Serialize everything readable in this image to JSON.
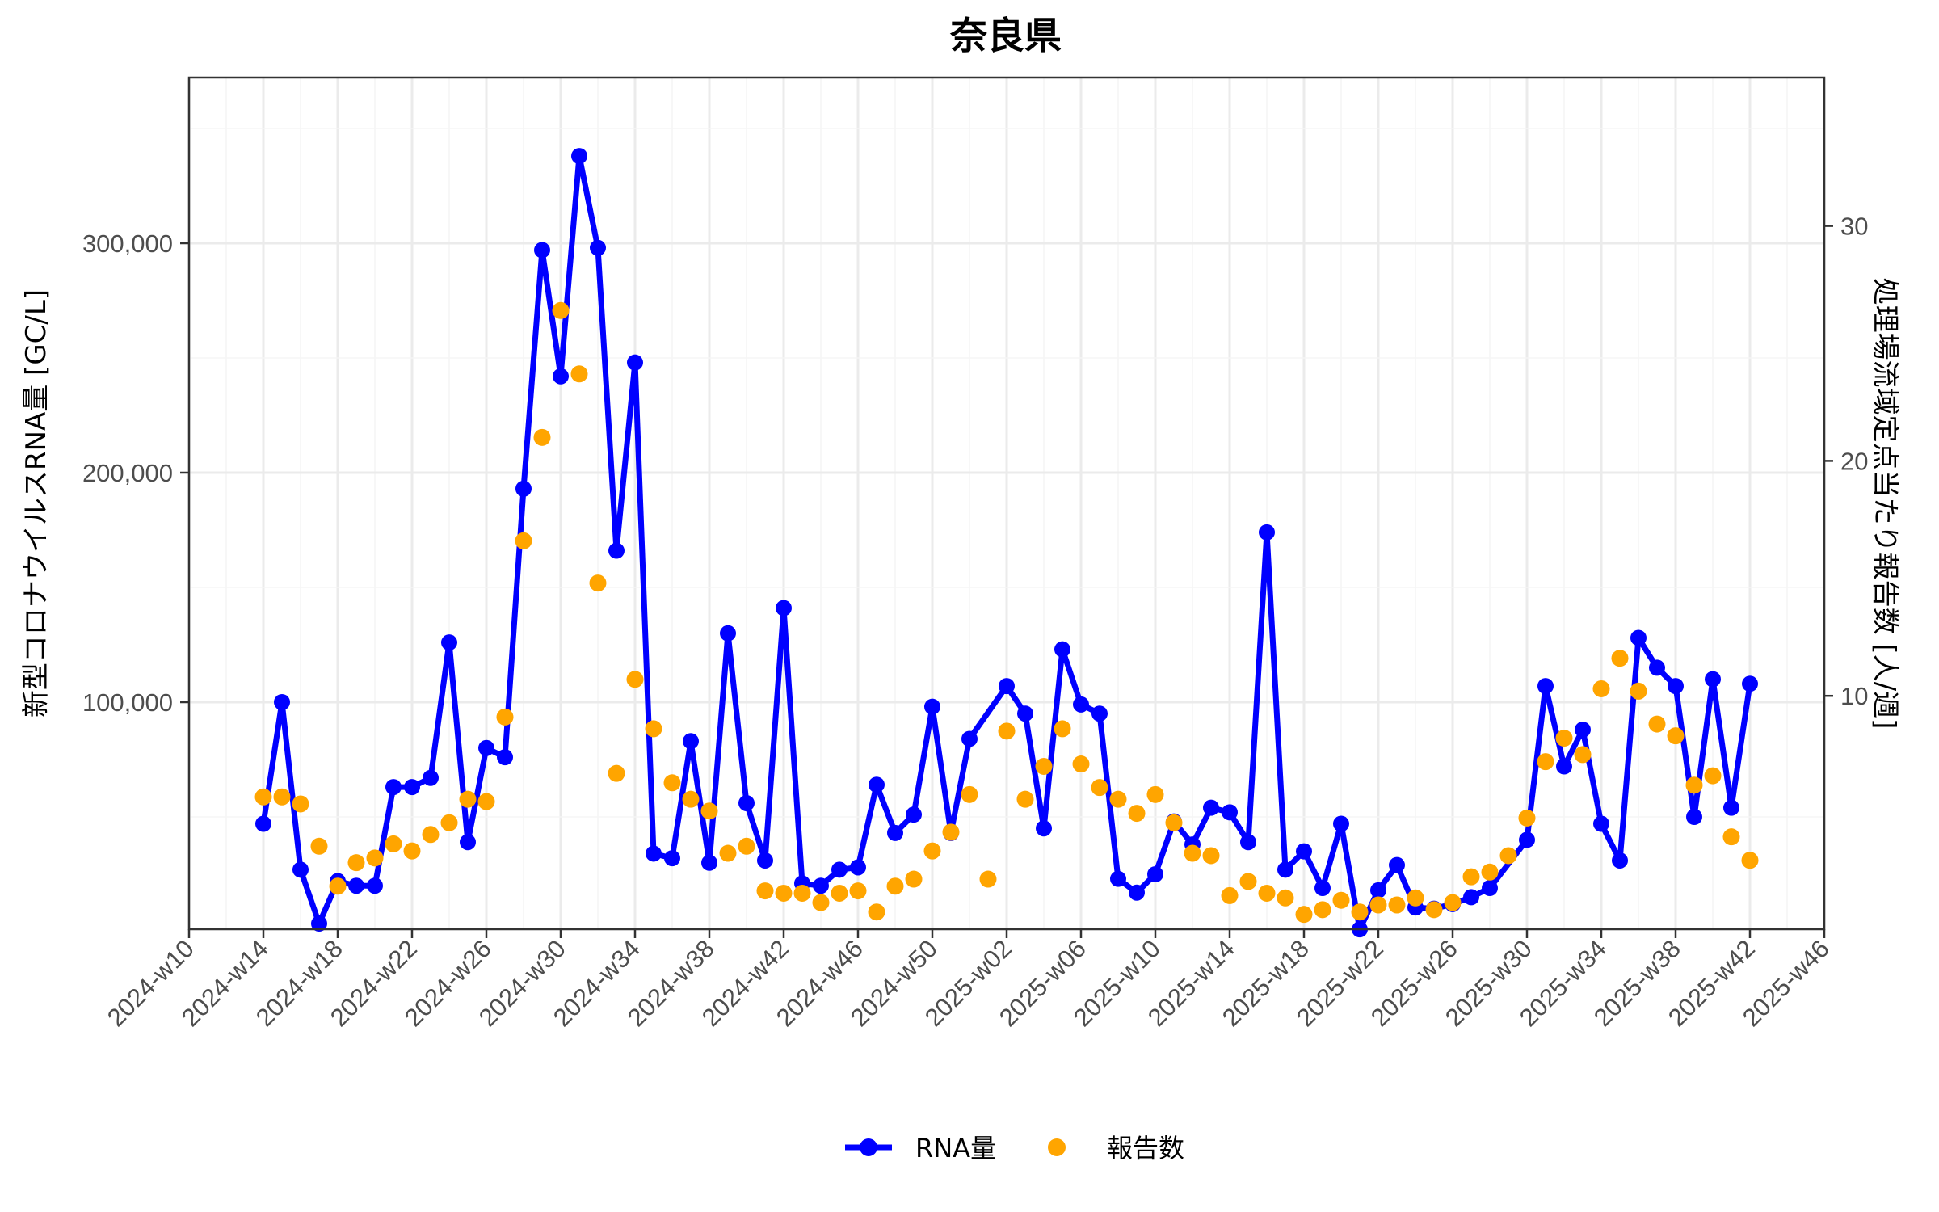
{
  "chart_data": {
    "type": "line",
    "title": "奈良県",
    "xlabel": "",
    "ylabel_left": "新型コロナウイルスRNA量 [GC/L]",
    "ylabel_right": "処理場流域定点当たり報告数 [人/週]",
    "ylim_left": [
      0,
      370000
    ],
    "ylim_right": [
      0,
      35
    ],
    "yticks_left": [
      100000,
      200000,
      300000
    ],
    "yticks_left_labels": [
      "100,000",
      "200,000",
      "300,000"
    ],
    "yticks_right": [
      10,
      20,
      30
    ],
    "xticks": [
      "2024-w10",
      "2024-w14",
      "2024-w18",
      "2024-w22",
      "2024-w26",
      "2024-w30",
      "2024-w34",
      "2024-w38",
      "2024-w42",
      "2024-w46",
      "2024-w50",
      "2025-w02",
      "2025-w06",
      "2025-w10",
      "2025-w14",
      "2025-w18",
      "2025-w22",
      "2025-w26",
      "2025-w30",
      "2025-w34",
      "2025-w38",
      "2025-w42",
      "2025-w46"
    ],
    "x_range_weeks": 88,
    "grid": true,
    "legend_position": "bottom",
    "legend": [
      {
        "name": "RNA量",
        "style": "line+point",
        "color": "#0000FF"
      },
      {
        "name": "報告数",
        "style": "point",
        "color": "#FFA500"
      }
    ],
    "x": [
      "2024-w14",
      "2024-w15",
      "2024-w16",
      "2024-w17",
      "2024-w18",
      "2024-w19",
      "2024-w20",
      "2024-w21",
      "2024-w22",
      "2024-w23",
      "2024-w24",
      "2024-w25",
      "2024-w26",
      "2024-w27",
      "2024-w28",
      "2024-w29",
      "2024-w30",
      "2024-w31",
      "2024-w32",
      "2024-w33",
      "2024-w34",
      "2024-w35",
      "2024-w36",
      "2024-w37",
      "2024-w38",
      "2024-w39",
      "2024-w40",
      "2024-w41",
      "2024-w42",
      "2024-w43",
      "2024-w44",
      "2024-w45",
      "2024-w46",
      "2024-w47",
      "2024-w48",
      "2024-w49",
      "2024-w50",
      "2024-w51",
      "2024-w52",
      "2025-w01",
      "2025-w02",
      "2025-w03",
      "2025-w04",
      "2025-w05",
      "2025-w06",
      "2025-w07",
      "2025-w08",
      "2025-w09",
      "2025-w10",
      "2025-w11",
      "2025-w12",
      "2025-w13",
      "2025-w14",
      "2025-w15",
      "2025-w16",
      "2025-w17",
      "2025-w18",
      "2025-w19",
      "2025-w20",
      "2025-w21",
      "2025-w22",
      "2025-w23",
      "2025-w24",
      "2025-w25",
      "2025-w26",
      "2025-w27",
      "2025-w28",
      "2025-w29",
      "2025-w30",
      "2025-w31",
      "2025-w32",
      "2025-w33",
      "2025-w34",
      "2025-w35",
      "2025-w36",
      "2025-w37",
      "2025-w38",
      "2025-w39",
      "2025-w40",
      "2025-w41",
      "2025-w42"
    ],
    "x_index": [
      4,
      5,
      6,
      7,
      8,
      9,
      10,
      11,
      12,
      13,
      14,
      15,
      16,
      17,
      18,
      19,
      20,
      21,
      22,
      23,
      24,
      25,
      26,
      27,
      28,
      29,
      30,
      31,
      32,
      33,
      34,
      35,
      36,
      37,
      38,
      39,
      40,
      41,
      42,
      43,
      44,
      45,
      46,
      47,
      48,
      49,
      50,
      51,
      52,
      53,
      54,
      55,
      56,
      57,
      58,
      59,
      60,
      61,
      62,
      63,
      64,
      65,
      66,
      67,
      68,
      69,
      70,
      71,
      72,
      73,
      74,
      75,
      76,
      77,
      78,
      79,
      80,
      81,
      82,
      83,
      84
    ],
    "series": [
      {
        "name": "RNA量",
        "axis": "left",
        "values": [
          47000,
          100000,
          27000,
          3500,
          22000,
          20000,
          20000,
          63000,
          63000,
          67000,
          126000,
          39000,
          80000,
          76000,
          193000,
          297000,
          242000,
          338000,
          298000,
          166000,
          248000,
          34000,
          32000,
          83000,
          30000,
          130000,
          56000,
          31000,
          141000,
          21000,
          20000,
          27000,
          28000,
          64000,
          43000,
          51000,
          98000,
          43000,
          84000,
          null,
          107000,
          95000,
          45000,
          123000,
          99000,
          95000,
          23000,
          17000,
          25000,
          48000,
          38000,
          54000,
          52000,
          39000,
          174000,
          27000,
          35000,
          19000,
          47000,
          1000,
          18000,
          29000,
          10500,
          10000,
          12000,
          15000,
          19000,
          null,
          40000,
          107000,
          72000,
          88000,
          47000,
          31000,
          128000,
          115000,
          107000,
          50000,
          110000,
          54000,
          108000
        ]
      },
      {
        "name": "報告数",
        "axis": "right",
        "values": [
          5.7,
          5.7,
          5.4,
          3.6,
          1.9,
          2.9,
          3.1,
          3.7,
          3.4,
          4.1,
          4.6,
          5.6,
          5.5,
          9.1,
          16.6,
          21.0,
          26.4,
          23.7,
          14.8,
          6.7,
          10.7,
          8.6,
          6.3,
          5.6,
          5.1,
          3.3,
          3.6,
          1.7,
          1.6,
          1.6,
          1.2,
          1.6,
          1.7,
          0.8,
          1.9,
          2.2,
          3.4,
          4.2,
          5.8,
          2.2,
          8.5,
          5.6,
          7.0,
          8.6,
          7.1,
          6.1,
          5.6,
          5.0,
          5.8,
          4.6,
          3.3,
          3.2,
          1.5,
          2.1,
          1.6,
          1.4,
          0.7,
          0.9,
          1.3,
          0.8,
          1.1,
          1.1,
          1.4,
          0.9,
          1.2,
          2.3,
          2.5,
          3.2,
          4.8,
          7.2,
          8.2,
          7.5,
          10.3,
          11.6,
          10.2,
          8.8,
          8.3,
          6.2,
          6.6,
          4.0,
          3.0
        ]
      }
    ]
  },
  "colors": {
    "rna": "#0000FF",
    "report": "#FFA500",
    "grid_major": "#EBEBEB",
    "grid_minor": "#F5F5F5",
    "axis": "#333333",
    "tick_text": "#4D4D4D"
  }
}
